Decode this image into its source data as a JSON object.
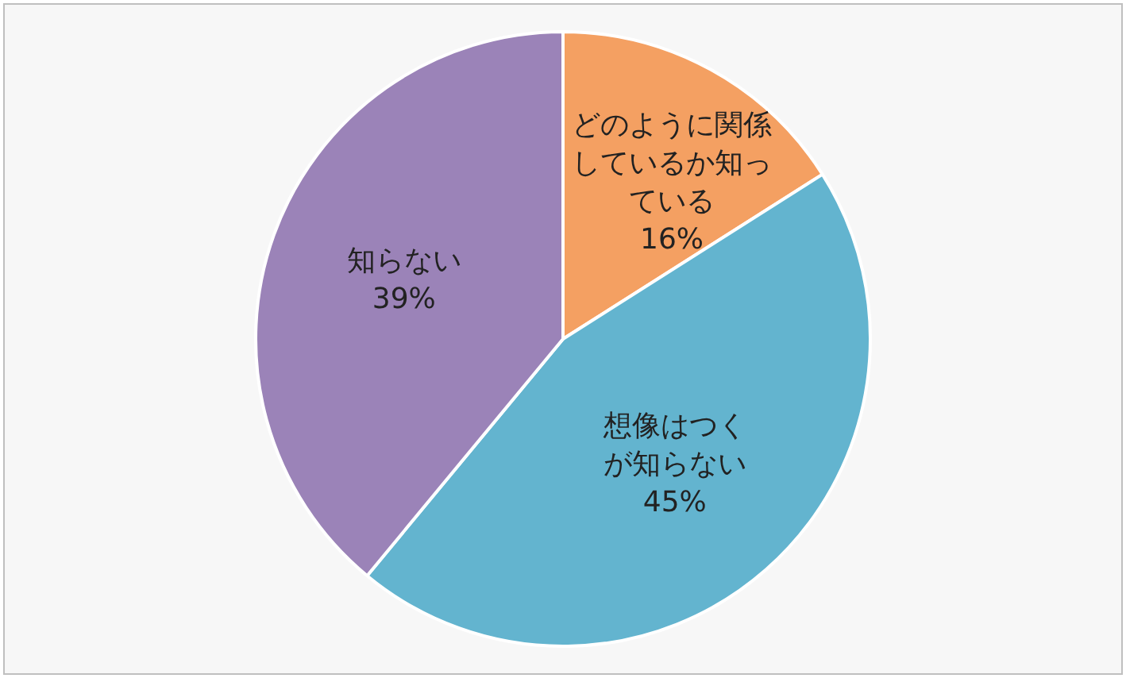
{
  "chart_data": {
    "type": "pie",
    "categories": [
      "どのように関係しているか知っている",
      "想像はつくが知らない",
      "知らない"
    ],
    "values": [
      16,
      45,
      39
    ],
    "value_labels": [
      "16%",
      "45%",
      "39%"
    ],
    "colors": [
      "#f4a062",
      "#63b4cf",
      "#9b83b8"
    ],
    "legend": false
  }
}
